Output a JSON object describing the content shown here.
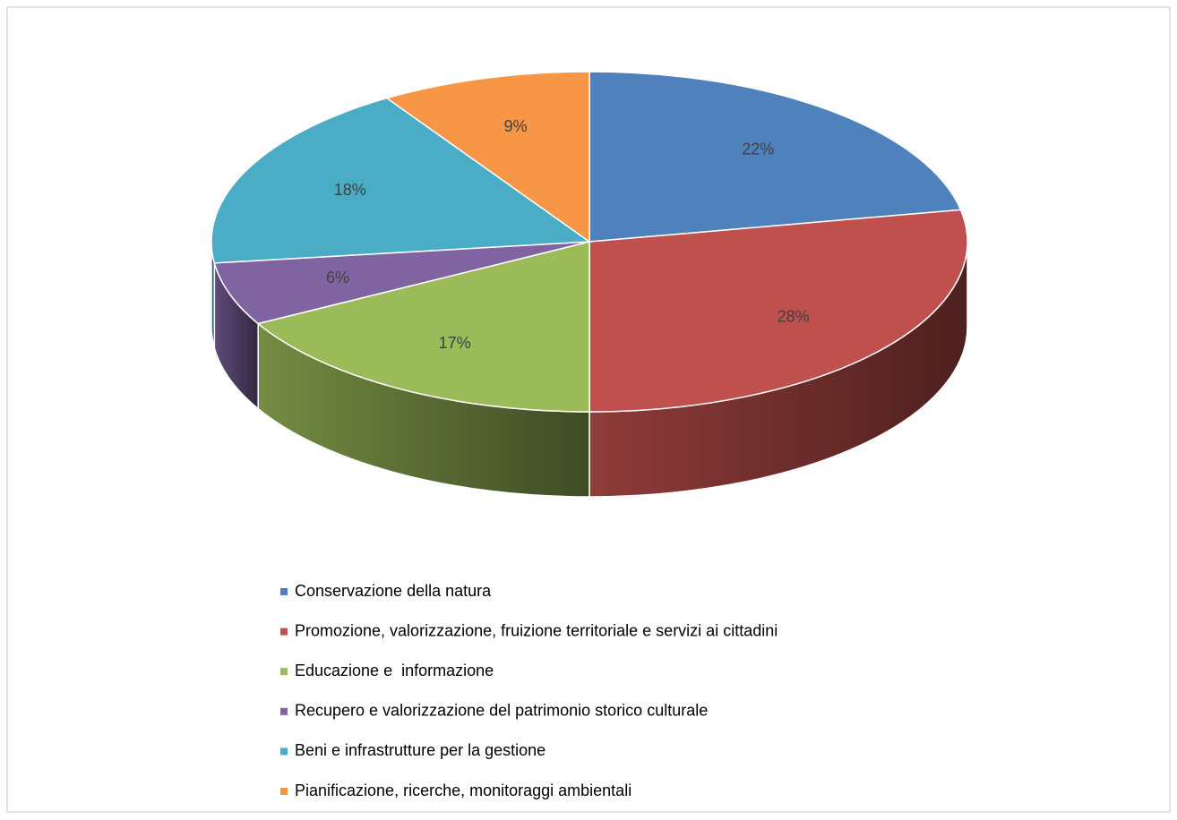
{
  "chart_data": {
    "type": "pie3d",
    "categories": [
      "Conservazione della natura",
      "Promozione, valorizzazione, fruizione territoriale e servizi ai cittadini",
      "Educazione e  informazione",
      "Recupero e valorizzazione del patrimonio storico culturale",
      "Beni e infrastrutture per la gestione",
      "Pianificazione, ricerche, monitoraggi ambientali"
    ],
    "values": [
      22,
      28,
      17,
      6,
      18,
      9
    ],
    "value_labels": [
      "22%",
      "28%",
      "17%",
      "6%",
      "18%",
      "9%"
    ],
    "colors": [
      "#4f81bd",
      "#c0504d",
      "#9bbb59",
      "#8064a2",
      "#4bacc6",
      "#f79646"
    ],
    "legend": "bottom"
  }
}
